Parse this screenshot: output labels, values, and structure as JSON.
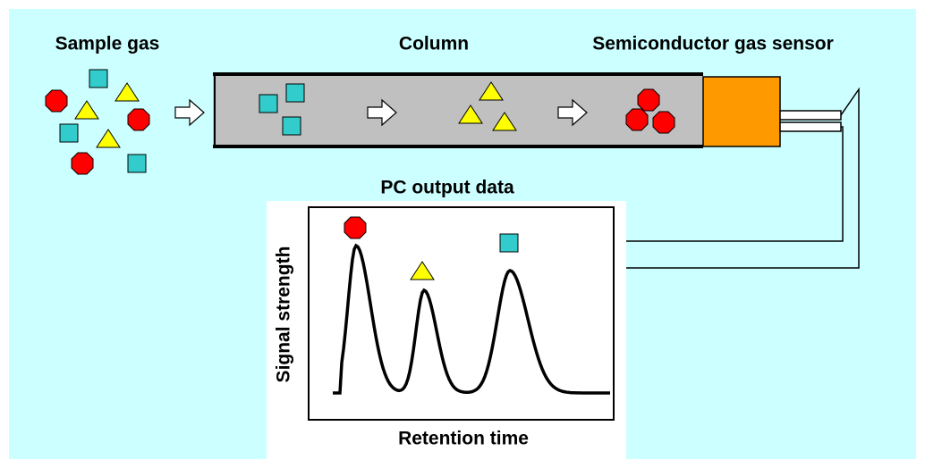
{
  "labels": {
    "sample_gas": "Sample gas",
    "column": "Column",
    "sensor": "Semiconductor gas sensor",
    "pc_output": "PC output data",
    "y_axis": "Signal strength",
    "x_axis": "Retention time"
  }
}
